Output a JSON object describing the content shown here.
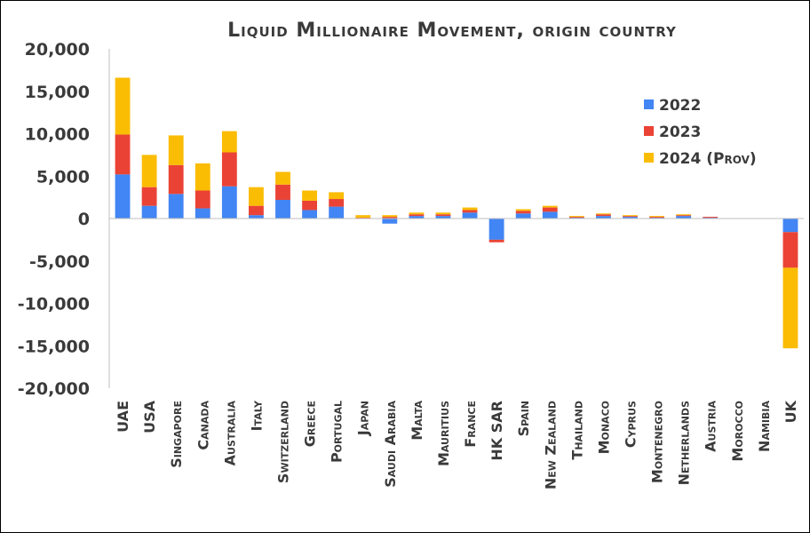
{
  "chart_data": {
    "type": "bar",
    "stacked": true,
    "title": "Liquid Millionaire Movement, origin country",
    "xlabel": "",
    "ylabel": "",
    "ylim": [
      -20000,
      20000
    ],
    "yticks": [
      20000,
      15000,
      10000,
      5000,
      0,
      -5000,
      -10000,
      -15000,
      -20000
    ],
    "ytick_labels": [
      "20,000",
      "15,000",
      "10,000",
      "5,000",
      "0",
      "-5,000",
      "-10,000",
      "-15,000",
      "-20,000"
    ],
    "grid": false,
    "legend_position": "top-right",
    "categories": [
      "UAE",
      "USA",
      "Singapore",
      "Canada",
      "Australia",
      "Italy",
      "Switzerland",
      "Greece",
      "Portugal",
      "Japan",
      "Saudi Arabia",
      "Malta",
      "Mauritius",
      "France",
      "HK SAR",
      "Spain",
      "New Zealand",
      "Thailand",
      "Monaco",
      "Cyprus",
      "Montenegro",
      "Netherlands",
      "Austria",
      "Morocco",
      "Namibia",
      "UK"
    ],
    "series": [
      {
        "name": "2022",
        "color": "#4285f4",
        "values": [
          5200,
          1500,
          2900,
          1200,
          3800,
          400,
          2200,
          1000,
          1400,
          0,
          -600,
          300,
          300,
          700,
          -2500,
          600,
          800,
          100,
          300,
          200,
          100,
          300,
          100,
          0,
          0,
          -1600
        ]
      },
      {
        "name": "2023",
        "color": "#ea4335",
        "values": [
          4700,
          2200,
          3400,
          2100,
          4000,
          1100,
          1800,
          1100,
          900,
          100,
          200,
          200,
          200,
          300,
          -300,
          300,
          500,
          100,
          200,
          100,
          100,
          100,
          100,
          0,
          0,
          -4200
        ]
      },
      {
        "name": "2024 (Prov)",
        "color": "#fbbc04",
        "values": [
          6700,
          3800,
          3500,
          3200,
          2500,
          2200,
          1500,
          1200,
          800,
          300,
          200,
          200,
          200,
          300,
          0,
          200,
          200,
          100,
          100,
          100,
          100,
          100,
          0,
          0,
          0,
          -9500
        ]
      }
    ]
  }
}
